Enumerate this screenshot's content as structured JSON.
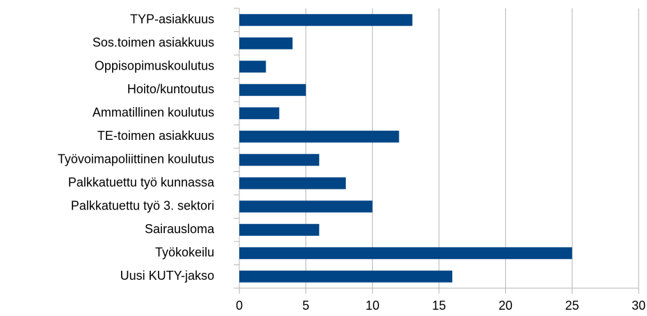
{
  "chart_data": {
    "type": "bar",
    "orientation": "horizontal",
    "categories": [
      "TYP-asiakkuus",
      "Sos.toimen asiakkuus",
      "Oppisopimuskoulutus",
      "Hoito/kuntoutus",
      "Ammatillinen koulutus",
      "TE-toimen asiakkuus",
      "Työvoimapoliittinen koulutus",
      "Palkkatuettu työ kunnassa",
      "Palkkatuettu työ 3. sektori",
      "Sairausloma",
      "Työkokeilu",
      "Uusi KUTY-jakso"
    ],
    "values": [
      13,
      4,
      2,
      5,
      3,
      12,
      6,
      8,
      10,
      6,
      25,
      16
    ],
    "color": "#004586",
    "xlim": [
      0,
      30
    ],
    "xticks": [
      0,
      5,
      10,
      15,
      20,
      25,
      30
    ],
    "grid": true
  }
}
